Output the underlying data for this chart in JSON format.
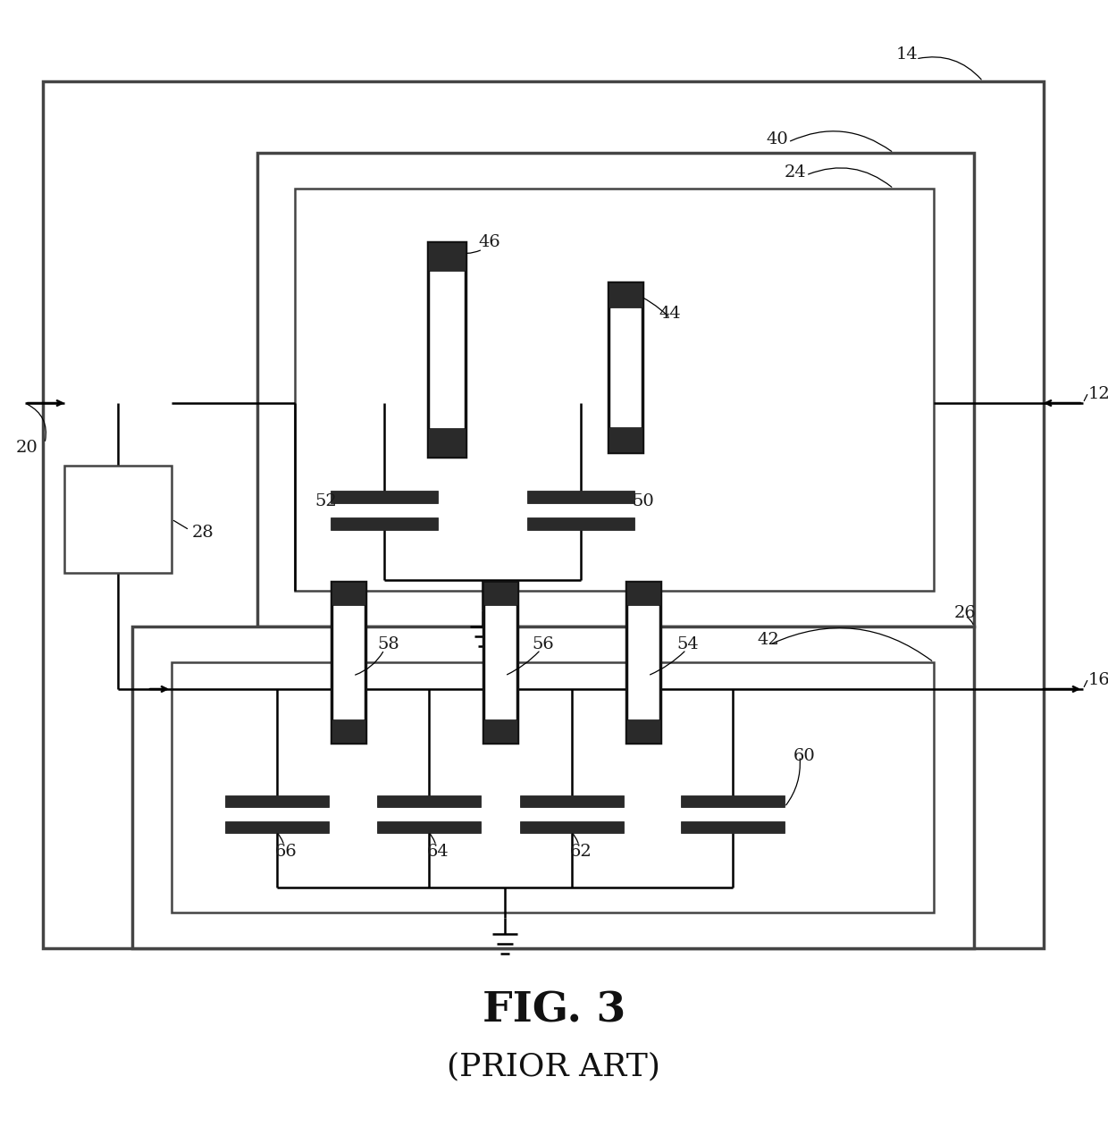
{
  "fig_title": "FIG. 3",
  "fig_subtitle": "(PRIOR ART)",
  "bg_color": "#ffffff",
  "line_color": "#000000"
}
